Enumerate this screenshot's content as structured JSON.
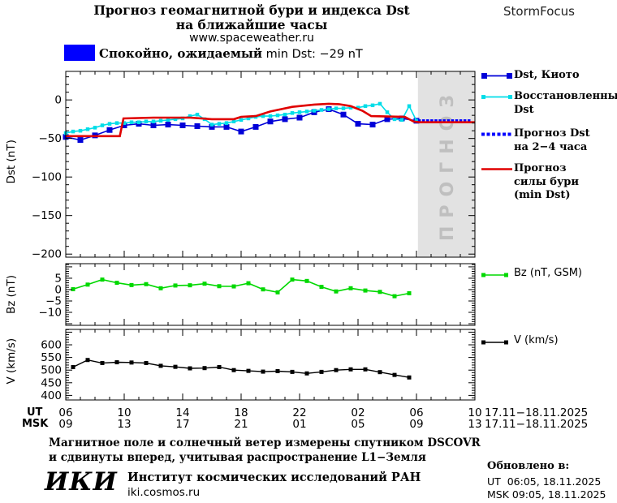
{
  "header": {
    "title_line1": "Прогноз геомагнитной бури и индекса Dst",
    "title_line2": "на ближайшие часы",
    "site": "www.spaceweather.ru",
    "brand": "StormFocus"
  },
  "status": {
    "swatch_color": "#0000ff",
    "text_bold": "Спокойно, ожидаемый",
    "text_rest": " min Dst: −29 nT"
  },
  "forecast_band": {
    "label": "ПРОГНОЗ",
    "fill": "#e2e2e2",
    "text_color": "#bfbfbf"
  },
  "legend_dst": [
    {
      "id": "kyoto",
      "style": "solid-squares",
      "color": "#0000d8",
      "marker_size": 7,
      "lines": [
        "Dst, Киото"
      ]
    },
    {
      "id": "restored",
      "style": "solid-squares",
      "color": "#00dde8",
      "marker_size": 5,
      "lines": [
        "Восстановленный",
        "Dst"
      ]
    },
    {
      "id": "forecast-dst",
      "style": "dotted",
      "color": "#0000ff",
      "marker_size": 4,
      "lines": [
        "Прогноз Dst",
        "на 2−4 часа"
      ]
    },
    {
      "id": "forecast-storm",
      "style": "solid",
      "color": "#e00000",
      "marker_size": 0,
      "lines": [
        "Прогноз",
        "силы бури",
        "(min Dst)"
      ]
    }
  ],
  "legend_bz": {
    "label": "Bz (nT, GSM)",
    "color": "#00d800"
  },
  "legend_v": {
    "label": "V (km/s)",
    "color": "#000000"
  },
  "xaxis": {
    "ut_label": "UT",
    "msk_label": "MSK",
    "ut_ticks": [
      "06",
      "10",
      "14",
      "18",
      "22",
      "02",
      "06",
      "10"
    ],
    "msk_ticks": [
      "09",
      "13",
      "17",
      "21",
      "01",
      "05",
      "09",
      "13"
    ],
    "ut_daterange": "17.11−18.11.2025",
    "msk_daterange": "17.11−18.11.2025"
  },
  "footer": {
    "note_line1": "Магнитное поле и солнечный ветер измерены спутником DSCOVR",
    "note_line2": "и сдвинуты вперед, учитывая распространение L1−Земля",
    "logo": "ИКИ",
    "institute": "Институт космических исследований РАН",
    "site": "iki.cosmos.ru",
    "updated_label": "Обновлено в:",
    "updated_ut": "UT  06:05, 18.11.2025",
    "updated_msk": "MSK 09:05, 18.11.2025"
  },
  "chart_data": [
    {
      "type": "line",
      "panel": "dst",
      "ylabel": "Dst (nT)",
      "ylim": [
        -204,
        37
      ],
      "yticks": [
        0,
        -50,
        -100,
        -150,
        -200
      ],
      "ytick_labels": [
        "0",
        "−50",
        "−100",
        "−150",
        "−200"
      ],
      "y_minor_step": 10,
      "xlim_hours": [
        0,
        28
      ],
      "x_start": "06:00 UT 17.11.2025",
      "xticks_hours": [
        0,
        4,
        8,
        12,
        16,
        20,
        24,
        28
      ],
      "forecast_band_hours": [
        24.1,
        28
      ],
      "grid": false,
      "legend_position": "right",
      "series": [
        {
          "name": "Dst, Киото",
          "color": "#0000d8",
          "style": "line-markers",
          "marker_size": 7,
          "line_width": 1.6,
          "x0": 0,
          "x_step": 1,
          "values": [
            -48,
            -52,
            -46,
            -39,
            -33,
            -31,
            -33,
            -32,
            -33,
            -34,
            -35,
            -35,
            -41,
            -35,
            -28,
            -25,
            -23,
            -16,
            -12,
            -19,
            -31,
            -32,
            -25,
            -24,
            -27
          ]
        },
        {
          "name": "Восстановленный Dst",
          "color": "#00dde8",
          "style": "line-markers",
          "marker_size": 4.5,
          "line_width": 1.6,
          "x0": 0,
          "x_step": 0.5,
          "values": [
            -43,
            -41,
            -40,
            -38,
            -36,
            -33,
            -31,
            -30,
            -30,
            -29,
            -29,
            -28,
            -28,
            -27,
            -26,
            -25,
            -24,
            -21,
            -19,
            -25,
            -32,
            -31,
            -30,
            -28,
            -26,
            -24,
            -22,
            -21,
            -21,
            -20,
            -19,
            -17,
            -16,
            -15,
            -14,
            -13,
            -12,
            -11,
            -11,
            -10,
            -10,
            -8,
            -7,
            -5,
            -16,
            -25,
            -26,
            -8,
            -27
          ]
        },
        {
          "name": "Прогноз Dst на 2−4 часа",
          "color": "#0000ff",
          "style": "dotted",
          "marker_size": 3.5,
          "x_range": [
            24.2,
            27.6
          ],
          "value": -27
        },
        {
          "name": "Прогноз силы бури (min Dst)",
          "color": "#e00000",
          "style": "line",
          "line_width": 2.6,
          "points": [
            [
              0,
              -47
            ],
            [
              3.7,
              -47
            ],
            [
              3.95,
              -24
            ],
            [
              6,
              -23
            ],
            [
              8.5,
              -23
            ],
            [
              10,
              -25
            ],
            [
              11.5,
              -25
            ],
            [
              12,
              -22
            ],
            [
              13,
              -21
            ],
            [
              14,
              -15
            ],
            [
              15.5,
              -9
            ],
            [
              17,
              -6
            ],
            [
              18,
              -5
            ],
            [
              18.7,
              -5.5
            ],
            [
              19.5,
              -8
            ],
            [
              20.3,
              -14
            ],
            [
              20.9,
              -21
            ],
            [
              22,
              -21.5
            ],
            [
              23.2,
              -22
            ],
            [
              23.8,
              -28
            ],
            [
              24.2,
              -29
            ],
            [
              28,
              -29
            ]
          ]
        }
      ]
    },
    {
      "type": "line",
      "panel": "bz",
      "ylabel": "Bz (nT)",
      "ylim": [
        -15.7,
        11.4
      ],
      "yticks": [
        5,
        0,
        -5,
        -10
      ],
      "ytick_labels": [
        "5",
        "0",
        "−5",
        "−10"
      ],
      "y_minor_step": 1,
      "y_major_step": 5,
      "xlim_hours": [
        0,
        28
      ],
      "grid": false,
      "series": [
        {
          "name": "Bz (nT, GSM)",
          "color": "#00d800",
          "style": "line-markers",
          "marker_size": 5,
          "line_width": 1.6,
          "x0": 0.5,
          "x_step": 1,
          "values": [
            0.2,
            2.2,
            4.4,
            3.0,
            2.0,
            2.4,
            0.6,
            1.8,
            1.9,
            2.6,
            1.5,
            1.4,
            2.8,
            0.1,
            -1.2,
            4.4,
            3.8,
            1.2,
            -0.8,
            0.6,
            -0.4,
            -1.0,
            -2.9,
            -1.6
          ]
        }
      ]
    },
    {
      "type": "line",
      "panel": "v",
      "ylabel": "V (km/s)",
      "ylim": [
        382,
        661
      ],
      "yticks": [
        600,
        550,
        500,
        450,
        400
      ],
      "ytick_labels": [
        "600",
        "550",
        "500",
        "450",
        "400"
      ],
      "y_minor_step": 10,
      "y_major_step": 50,
      "xlim_hours": [
        0,
        28
      ],
      "grid": false,
      "series": [
        {
          "name": "V (km/s)",
          "color": "#000000",
          "style": "line-markers",
          "marker_size": 5,
          "line_width": 1.4,
          "x0": 0.5,
          "x_step": 1,
          "values": [
            512,
            540,
            528,
            531,
            530,
            528,
            517,
            513,
            507,
            508,
            512,
            500,
            497,
            494,
            496,
            493,
            487,
            493,
            500,
            503,
            503,
            492,
            481,
            471
          ]
        }
      ]
    }
  ]
}
